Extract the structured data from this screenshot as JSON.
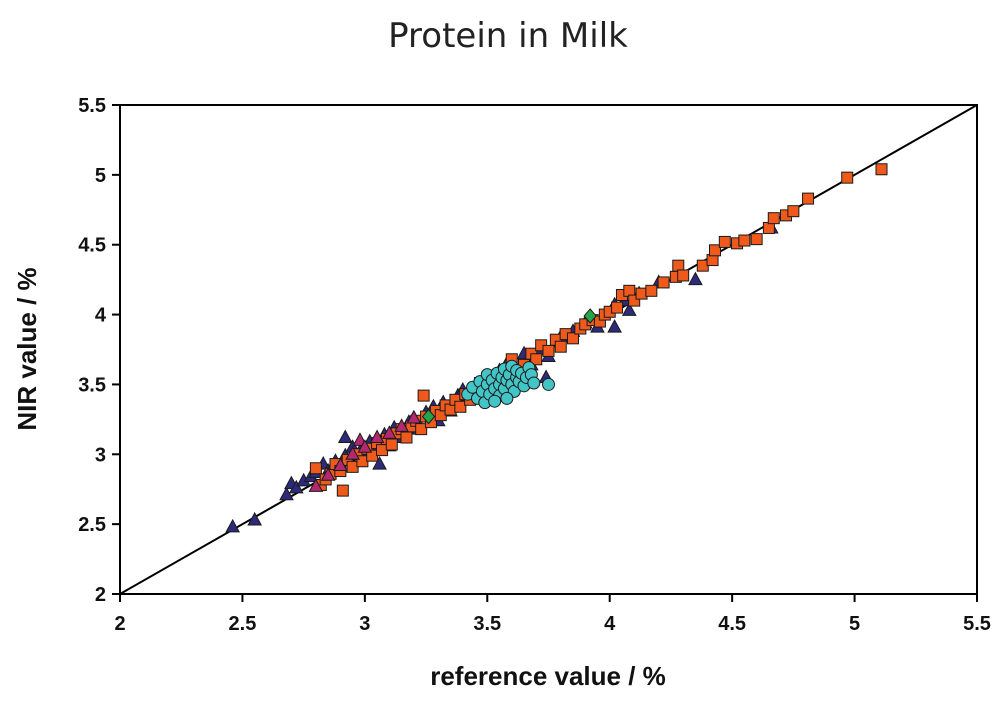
{
  "chart_data": {
    "type": "scatter",
    "title": "Protein in Milk",
    "xlabel": "reference value / %",
    "ylabel": "NIR value / %",
    "xlim": [
      2,
      5.5
    ],
    "ylim": [
      2,
      5.5
    ],
    "x_ticks": [
      "2",
      "2.5",
      "3",
      "3.5",
      "4",
      "4.5",
      "5",
      "5.5"
    ],
    "y_ticks": [
      "2",
      "2.5",
      "3",
      "3.5",
      "4",
      "4.5",
      "5",
      "5.5"
    ],
    "grid": false,
    "reference_line": {
      "x": [
        2,
        5.5
      ],
      "y": [
        2,
        5.5
      ]
    },
    "series": [
      {
        "marker": "triangle",
        "color": "#2e2a7a",
        "points": [
          [
            2.46,
            2.48
          ],
          [
            2.55,
            2.53
          ],
          [
            2.68,
            2.71
          ],
          [
            2.7,
            2.79
          ],
          [
            2.72,
            2.76
          ],
          [
            2.75,
            2.81
          ],
          [
            2.78,
            2.84
          ],
          [
            2.8,
            2.87
          ],
          [
            2.83,
            2.93
          ],
          [
            2.85,
            2.88
          ],
          [
            2.88,
            2.95
          ],
          [
            2.9,
            2.91
          ],
          [
            2.92,
            2.99
          ],
          [
            2.95,
            3.05
          ],
          [
            2.98,
            3.02
          ],
          [
            3.0,
            3.01
          ],
          [
            3.02,
            3.09
          ],
          [
            3.05,
            3.06
          ],
          [
            3.06,
            2.93
          ],
          [
            3.08,
            3.14
          ],
          [
            3.1,
            3.06
          ],
          [
            3.12,
            3.19
          ],
          [
            3.15,
            3.12
          ],
          [
            3.18,
            3.23
          ],
          [
            3.2,
            3.26
          ],
          [
            3.22,
            3.18
          ],
          [
            3.25,
            3.3
          ],
          [
            3.28,
            3.34
          ],
          [
            3.3,
            3.24
          ],
          [
            3.32,
            3.37
          ],
          [
            3.35,
            3.31
          ],
          [
            3.38,
            3.42
          ],
          [
            3.4,
            3.46
          ],
          [
            3.42,
            3.4
          ],
          [
            3.45,
            3.49
          ],
          [
            3.48,
            3.44
          ],
          [
            3.5,
            3.55
          ],
          [
            3.55,
            3.6
          ],
          [
            3.58,
            3.65
          ],
          [
            3.62,
            3.56
          ],
          [
            3.65,
            3.72
          ],
          [
            3.68,
            3.64
          ],
          [
            3.72,
            3.75
          ],
          [
            3.75,
            3.7
          ],
          [
            3.8,
            3.84
          ],
          [
            3.85,
            3.88
          ],
          [
            3.9,
            3.94
          ],
          [
            3.95,
            3.91
          ],
          [
            4.02,
            4.07
          ],
          [
            4.06,
            4.1
          ],
          [
            4.08,
            4.03
          ],
          [
            4.02,
            3.91
          ],
          [
            4.12,
            4.15
          ],
          [
            4.2,
            4.23
          ],
          [
            4.35,
            4.25
          ],
          [
            4.66,
            4.62
          ],
          [
            3.74,
            3.55
          ],
          [
            2.92,
            3.12
          ]
        ]
      },
      {
        "marker": "square",
        "color": "#ef5a1c",
        "points": [
          [
            2.8,
            2.9
          ],
          [
            2.82,
            2.78
          ],
          [
            2.84,
            2.82
          ],
          [
            2.86,
            2.86
          ],
          [
            2.88,
            2.93
          ],
          [
            2.9,
            2.88
          ],
          [
            2.91,
            2.74
          ],
          [
            2.93,
            2.96
          ],
          [
            2.95,
            2.91
          ],
          [
            2.97,
            3.0
          ],
          [
            2.99,
            2.95
          ],
          [
            3.01,
            3.04
          ],
          [
            3.03,
            2.99
          ],
          [
            3.05,
            3.08
          ],
          [
            3.07,
            3.03
          ],
          [
            3.09,
            3.11
          ],
          [
            3.11,
            3.07
          ],
          [
            3.13,
            3.15
          ],
          [
            3.15,
            3.18
          ],
          [
            3.17,
            3.12
          ],
          [
            3.19,
            3.2
          ],
          [
            3.21,
            3.24
          ],
          [
            3.23,
            3.18
          ],
          [
            3.24,
            3.42
          ],
          [
            3.25,
            3.27
          ],
          [
            3.27,
            3.23
          ],
          [
            3.29,
            3.31
          ],
          [
            3.31,
            3.28
          ],
          [
            3.33,
            3.35
          ],
          [
            3.35,
            3.32
          ],
          [
            3.37,
            3.39
          ],
          [
            3.39,
            3.34
          ],
          [
            3.41,
            3.43
          ],
          [
            3.43,
            3.39
          ],
          [
            3.45,
            3.47
          ],
          [
            3.47,
            3.51
          ],
          [
            3.5,
            3.55
          ],
          [
            3.6,
            3.68
          ],
          [
            3.65,
            3.64
          ],
          [
            3.68,
            3.72
          ],
          [
            3.7,
            3.68
          ],
          [
            3.72,
            3.78
          ],
          [
            3.75,
            3.74
          ],
          [
            3.78,
            3.82
          ],
          [
            3.8,
            3.77
          ],
          [
            3.82,
            3.86
          ],
          [
            3.85,
            3.83
          ],
          [
            3.88,
            3.9
          ],
          [
            3.9,
            3.93
          ],
          [
            3.93,
            3.96
          ],
          [
            3.96,
            3.95
          ],
          [
            3.98,
            4.0
          ],
          [
            4.0,
            4.02
          ],
          [
            4.03,
            4.05
          ],
          [
            4.05,
            4.14
          ],
          [
            4.08,
            4.17
          ],
          [
            4.1,
            4.1
          ],
          [
            4.13,
            4.15
          ],
          [
            4.17,
            4.17
          ],
          [
            4.22,
            4.23
          ],
          [
            4.27,
            4.27
          ],
          [
            4.28,
            4.35
          ],
          [
            4.3,
            4.28
          ],
          [
            4.38,
            4.35
          ],
          [
            4.42,
            4.39
          ],
          [
            4.43,
            4.46
          ],
          [
            4.47,
            4.52
          ],
          [
            4.52,
            4.51
          ],
          [
            4.55,
            4.53
          ],
          [
            4.6,
            4.54
          ],
          [
            4.65,
            4.62
          ],
          [
            4.67,
            4.69
          ],
          [
            4.72,
            4.71
          ],
          [
            4.75,
            4.74
          ],
          [
            4.81,
            4.83
          ],
          [
            4.97,
            4.98
          ],
          [
            5.11,
            5.04
          ]
        ]
      },
      {
        "marker": "triangle",
        "color": "#b3286e",
        "points": [
          [
            2.8,
            2.77
          ],
          [
            2.85,
            2.85
          ],
          [
            2.9,
            2.92
          ],
          [
            2.95,
            3.0
          ],
          [
            2.98,
            3.1
          ],
          [
            3.0,
            3.05
          ],
          [
            3.05,
            3.12
          ],
          [
            3.1,
            3.15
          ],
          [
            3.15,
            3.2
          ],
          [
            3.2,
            3.26
          ]
        ]
      },
      {
        "marker": "diamond",
        "color": "#25a34a",
        "points": [
          [
            3.26,
            3.27
          ],
          [
            3.92,
            3.99
          ]
        ]
      },
      {
        "marker": "circle",
        "color": "#43c4c6",
        "points": [
          [
            3.42,
            3.43
          ],
          [
            3.44,
            3.48
          ],
          [
            3.46,
            3.4
          ],
          [
            3.47,
            3.52
          ],
          [
            3.48,
            3.45
          ],
          [
            3.49,
            3.37
          ],
          [
            3.5,
            3.5
          ],
          [
            3.5,
            3.57
          ],
          [
            3.51,
            3.43
          ],
          [
            3.52,
            3.53
          ],
          [
            3.53,
            3.47
          ],
          [
            3.54,
            3.58
          ],
          [
            3.55,
            3.5
          ],
          [
            3.55,
            3.42
          ],
          [
            3.56,
            3.55
          ],
          [
            3.57,
            3.61
          ],
          [
            3.57,
            3.47
          ],
          [
            3.58,
            3.53
          ],
          [
            3.59,
            3.57
          ],
          [
            3.6,
            3.5
          ],
          [
            3.6,
            3.63
          ],
          [
            3.61,
            3.45
          ],
          [
            3.62,
            3.55
          ],
          [
            3.62,
            3.6
          ],
          [
            3.63,
            3.52
          ],
          [
            3.64,
            3.58
          ],
          [
            3.65,
            3.49
          ],
          [
            3.66,
            3.55
          ],
          [
            3.67,
            3.62
          ],
          [
            3.68,
            3.57
          ],
          [
            3.69,
            3.51
          ],
          [
            3.58,
            3.4
          ],
          [
            3.53,
            3.38
          ],
          [
            3.75,
            3.5
          ]
        ]
      }
    ]
  }
}
